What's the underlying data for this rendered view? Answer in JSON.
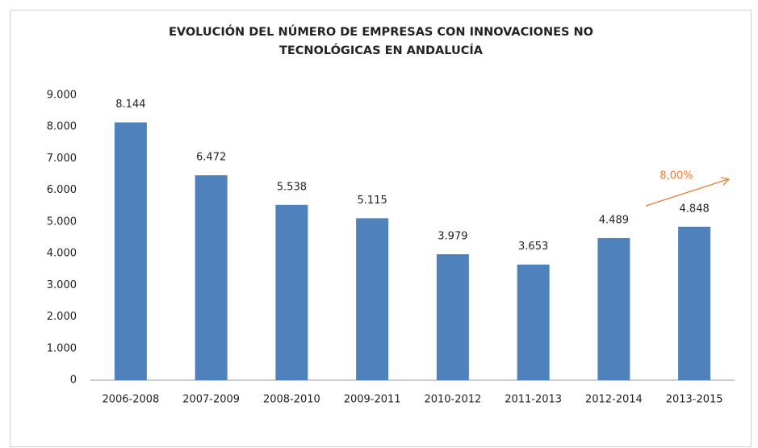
{
  "chart_data": {
    "type": "bar",
    "title": [
      "EVOLUCIÓN DEL NÚMERO DE EMPRESAS  CON INNOVACIONES  NO",
      "TECNOLÓGICAS  EN ANDALUCÍA"
    ],
    "categories": [
      "2006-2008",
      "2007-2009",
      "2008-2010",
      "2009-2011",
      "2010-2012",
      "2011-2013",
      "2012-2014",
      "2013-2015"
    ],
    "values": [
      8144,
      6472,
      5538,
      5115,
      3979,
      3653,
      4489,
      4848
    ],
    "value_labels": [
      "8.144",
      "6.472",
      "5.538",
      "5.115",
      "3.979",
      "3.653",
      "4.489",
      "4.848"
    ],
    "color": "#4f81bd",
    "ylim": [
      0,
      9000
    ],
    "yticks": [
      0,
      {
        "value": 1000,
        "label": "1.000"
      },
      {
        "value": 2000,
        "label": "2.000"
      },
      {
        "value": 3000,
        "label": "3.000"
      },
      {
        "value": 4000,
        "label": "4.000"
      },
      {
        "value": 5000,
        "label": "5.000"
      },
      {
        "value": 6000,
        "label": "6.000"
      },
      {
        "value": 7000,
        "label": "7.000"
      },
      {
        "value": 8000,
        "label": "8.000"
      },
      {
        "value": 9000,
        "label": "9.000"
      }
    ],
    "grid": false,
    "annotations": [
      {
        "text": "8,00%",
        "color": "#ed7d31"
      }
    ]
  }
}
